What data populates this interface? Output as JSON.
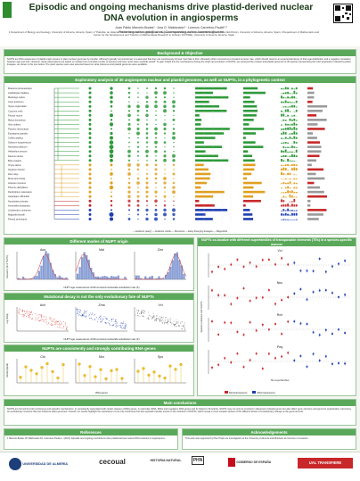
{
  "header": {
    "title_line1": "Episodic and ongoing mechanisms drive plastid-derived nuclear",
    "title_line2": "DNA evolution in angiosperms",
    "authors": "Juan Pablo Marcelo-Bodas¹ · Ana O. Maldonado¹ · Lorenzo Carretero-Paulet¹,²",
    "contact": "Presenting author: jmb@ual.es | Corresponding author: lcarretero@ual.es",
    "affiliations": "1 Department of Biology and Geology, University of Almería, Almería, Spain; 2 \"Pabellón de Historia Natural Centro de Investigación de Colecciones Científicas de la Universidad de Almería\" (PHN-CECOUAL), University of Almería, Almería, Spain; 3 Department of Mathematics and Center for the Development and Transfer of Mathematical Research to Industry (CDTIME), University of Almería, Almería, Spain"
  },
  "sections": {
    "background": "Background & Objective",
    "background_text": "NUPTs are DNA sequences of plastid origin present in plant nuclear genomes by transfer. Although typically non-functional, it is assumed that they are continuously formed, their fate is then ultimately either removed at a constant turnover rate, which should result in an exponential decay of their age distribution and a negative correlation between age and size. However, these assumptions are based on studies from a limited number of species and have never been explicitly tested. To gain insight into the mechanisms driving the origin and evolution of NUPTs, we surveyed the nuclear and plastid genomes of 30 species representing the main angiosperm (flowering plant) lineages, as shown in the tree below. The plant species were also selected based on what reference and plastid genomes were available.",
    "phylo": "Exploratory analysis of 30 angiosperm nuclear and plastid genomes, as well as NUPTs, in a phylogenetic context",
    "modes": "Different modes of NUPT origin",
    "mutational": "Mutational decay is not the only evolutionary fate of NUPTs",
    "rna": "NUPTs are consistently and strongly contributing RNA genes",
    "te": "NUPTs co-localize with different superfamilies of transposable elements (TEs) in a species-specific manner",
    "conclusions": "Main conclusions",
    "references": "References",
    "acknowledgements": "Acknowledgements"
  },
  "species": [
    "Brassica oleracea/rapa",
    "Arabidopsis thaliana",
    "Medicago sativa",
    "Cicer arietinum",
    "Vigna unguiculata",
    "Cucumis melo",
    "Prunus mume",
    "Malus domestica",
    "Vitis vinifera",
    "Populus trichocarpa",
    "Eucalyptus grandis",
    "Coffea arabica",
    "Solanum lycopersicum",
    "Nicotiana tabacum",
    "Helianthus annuus",
    "Daucus carota",
    "Beta vulgaris",
    "Oryza sativa",
    "Sorghum bicolor",
    "Zea mays",
    "Musa acuminata",
    "Ananas comosus",
    "Phoenix dactylifera",
    "Dendrobium catenatum",
    "Asparagus officinalis",
    "Nymphaea colorata",
    "Amborella trichopoda",
    "Liriodendron chinense",
    "Magnolia biondii",
    "Persea americana"
  ],
  "phylo_legend": "— Eudicots (early) — Eudicots rosids — Monocots — Early diverging lineages — Magnoliids",
  "modes_plots": [
    {
      "name": "Ass",
      "peak": 0.55
    },
    {
      "name": "Mal",
      "peak": 0.15
    },
    {
      "name": "Zmr",
      "peak": 0.8
    }
  ],
  "modes_xlabel": "NUPT age measured as JC69-corrected nucleotide substitution rate (K)",
  "modes_ylabel": "Frequency (% of NUPTs)",
  "mut_plots": [
    {
      "name": "Ach"
    },
    {
      "name": "Zma"
    },
    {
      "name": "Vvi"
    }
  ],
  "mut_xlabel": "NUPT age measured as JC69-corrected nucleotide substitution rate (K)",
  "mut_ylabel": "Log (% bp)",
  "rna_plots": [
    {
      "name": "Cfo"
    },
    {
      "name": "Mcr"
    },
    {
      "name": "Sps"
    }
  ],
  "rna_xlabel": "RNA genes",
  "rna_ylabel": "Density (bp/kb)",
  "te_plots": [
    {
      "name": "Vvi"
    },
    {
      "name": "Nnu"
    },
    {
      "name": "Rch"
    },
    {
      "name": "Peq"
    }
  ],
  "te_xlabel": "TE superfamilies",
  "te_ylabel": "Spatial correlation with NUPTs",
  "te_legend": [
    "Retrotransposons",
    "DNA transposons"
  ],
  "conclusions_text": "NUPTs are formed by both continuous and episodic mechanisms: 1) consistently associated with certain classes of RNA genes, in particular rRNA, tRNA and regulatory RNA genes and 2) linked to TE activity. NUPTs may not only be involved in dispersal of plastid genes but also affect gene structure and genomic organization, becoming an evolutionary resource that can influence plant genomes. Overall, our results highlight the importance of not only continuous but also episodic transfer events in the evolution of NUPTs, which reveal a more complex picture of the different drivers of evolutionary change at the genome level.",
  "references_text": "1 Marcelo-Bodas JP, Maldonado AO, Carretero-Paulet L. (2023). Episodic and ongoing mechanisms drive plastid-derived nuclear DNA evolution in angiosperms.",
  "ack_text": "This work was supported by Plan Propio de Investigación of the University of Almería and Ministerio de Ciencia e Innovación.",
  "logos": [
    "UNIVERSIDAD DE ALMERÍA",
    "cecoual",
    "HISTORIA NATURAL",
    "PHN",
    "GOBIERNO DE ESPAÑA",
    "UAL TRANSFIERE"
  ],
  "colors": {
    "accent": "#5aa85a",
    "yellow": "#f0c020",
    "blue": "#1e3fb0",
    "red": "#c8282a"
  }
}
